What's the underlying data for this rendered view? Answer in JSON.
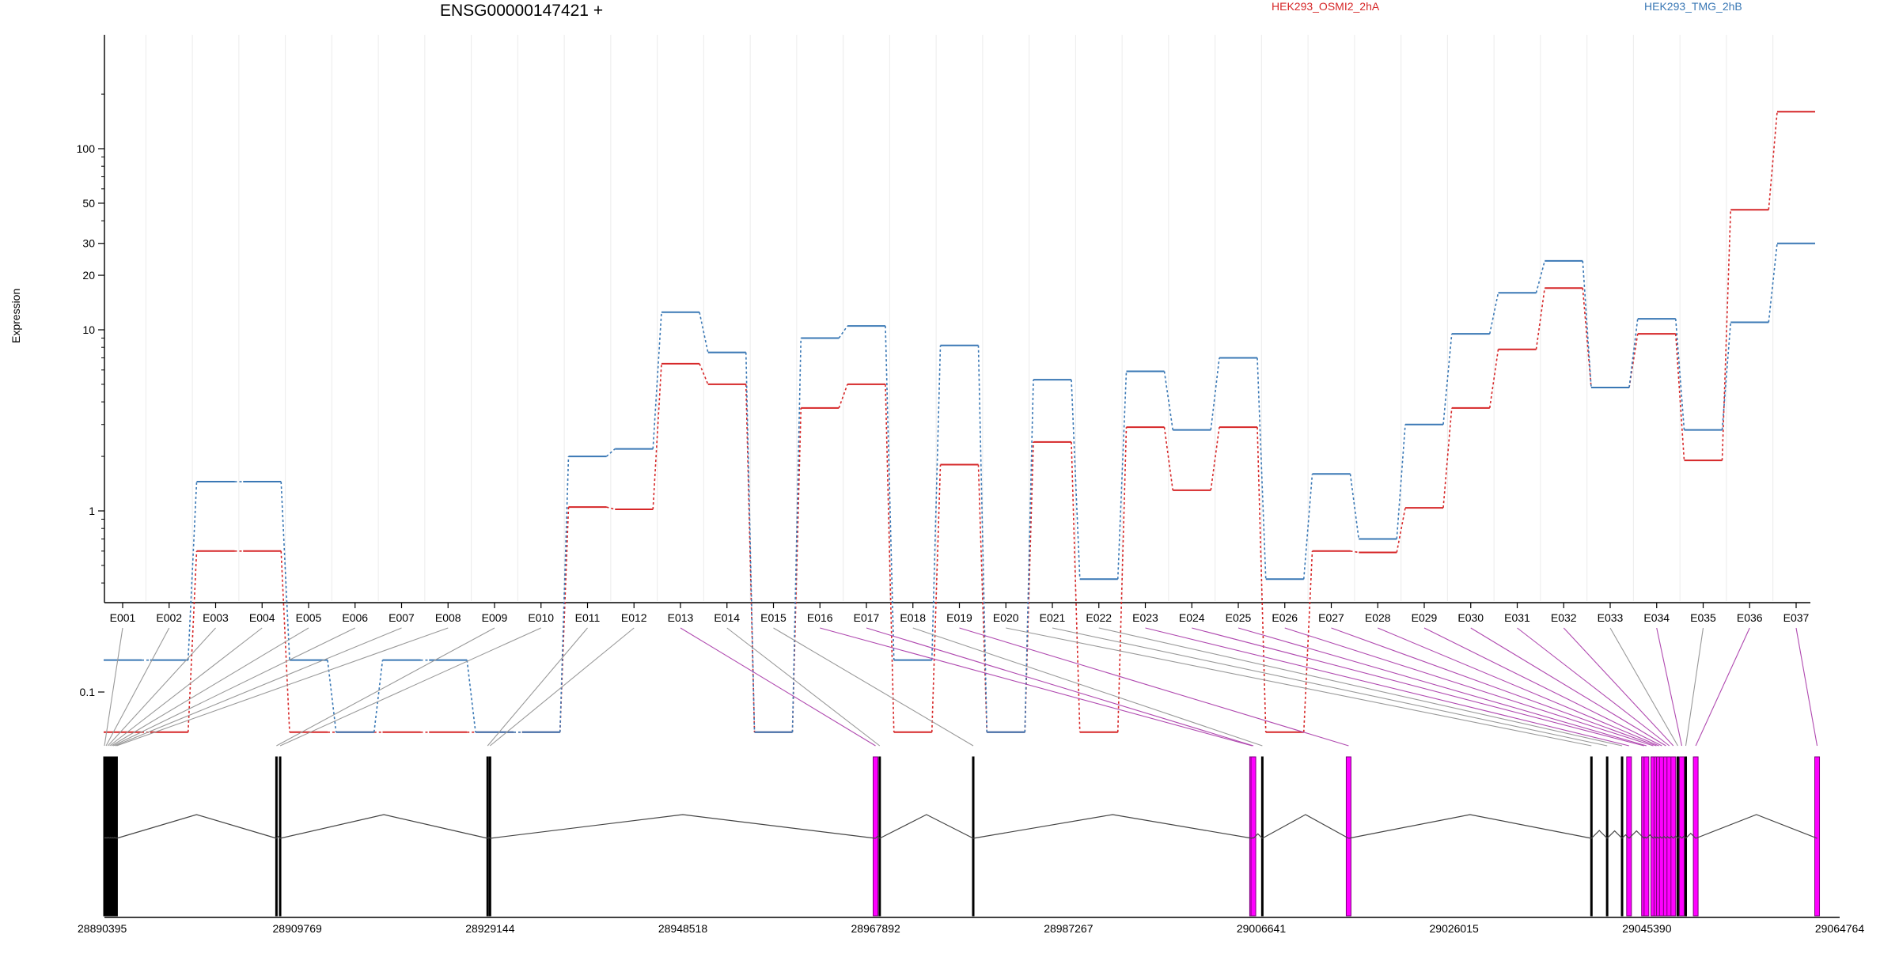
{
  "chart_data": {
    "type": "line",
    "title": "ENSG00000147421 +",
    "ylabel": "Expression",
    "y_scale": "log",
    "y_ticks": [
      0.1,
      1,
      10,
      20,
      30,
      50,
      100
    ],
    "y_tick_labels": [
      "0.1",
      "1",
      "10",
      "20",
      "30",
      "50",
      "100"
    ],
    "legend_placement": "top",
    "categories": [
      "E001",
      "E002",
      "E003",
      "E004",
      "E005",
      "E006",
      "E007",
      "E008",
      "E009",
      "E010",
      "E011",
      "E012",
      "E013",
      "E014",
      "E015",
      "E016",
      "E017",
      "E018",
      "E019",
      "E020",
      "E021",
      "E022",
      "E023",
      "E024",
      "E025",
      "E026",
      "E027",
      "E028",
      "E029",
      "E030",
      "E031",
      "E032",
      "E033",
      "E034",
      "E035",
      "E036",
      "E037"
    ],
    "series": [
      {
        "name": "HEK293_OSMI2_2hA",
        "color": "#d62728",
        "values": [
          0.06,
          0.06,
          0.6,
          0.6,
          0.06,
          0.06,
          0.06,
          0.06,
          0.06,
          0.06,
          1.05,
          1.02,
          6.5,
          5.0,
          0.06,
          3.7,
          5.0,
          0.06,
          1.8,
          0.06,
          2.4,
          0.06,
          2.9,
          1.3,
          2.9,
          0.06,
          0.6,
          0.59,
          1.04,
          3.7,
          7.8,
          17.0,
          4.8,
          9.5,
          1.9,
          46.0,
          160.0
        ]
      },
      {
        "name": "HEK293_TMG_2hB",
        "color": "#3a78b5",
        "values": [
          0.15,
          0.15,
          1.45,
          1.45,
          0.15,
          0.06,
          0.15,
          0.15,
          0.06,
          0.06,
          2.0,
          2.2,
          12.5,
          7.5,
          0.06,
          9.0,
          10.5,
          0.15,
          8.2,
          0.06,
          5.3,
          0.42,
          5.9,
          2.8,
          7.0,
          0.42,
          1.6,
          0.7,
          3.0,
          9.5,
          16.0,
          24.0,
          4.8,
          11.5,
          2.8,
          11.0,
          30.0
        ]
      }
    ],
    "genome_axis": {
      "ticks": [
        28890395,
        28909769,
        28929144,
        28948518,
        28967892,
        28987267,
        29006641,
        29026015,
        29045390,
        29064764
      ],
      "tick_labels": [
        "28890395",
        "28909769",
        "28929144",
        "28948518",
        "28967892",
        "28987267",
        "29006641",
        "29026015",
        "29045390",
        "29064764"
      ]
    },
    "exon_connector_colors": {
      "normal": "#999999",
      "highlighted": "#b04ab0"
    },
    "exon_fill_color": "#ff00ff"
  }
}
